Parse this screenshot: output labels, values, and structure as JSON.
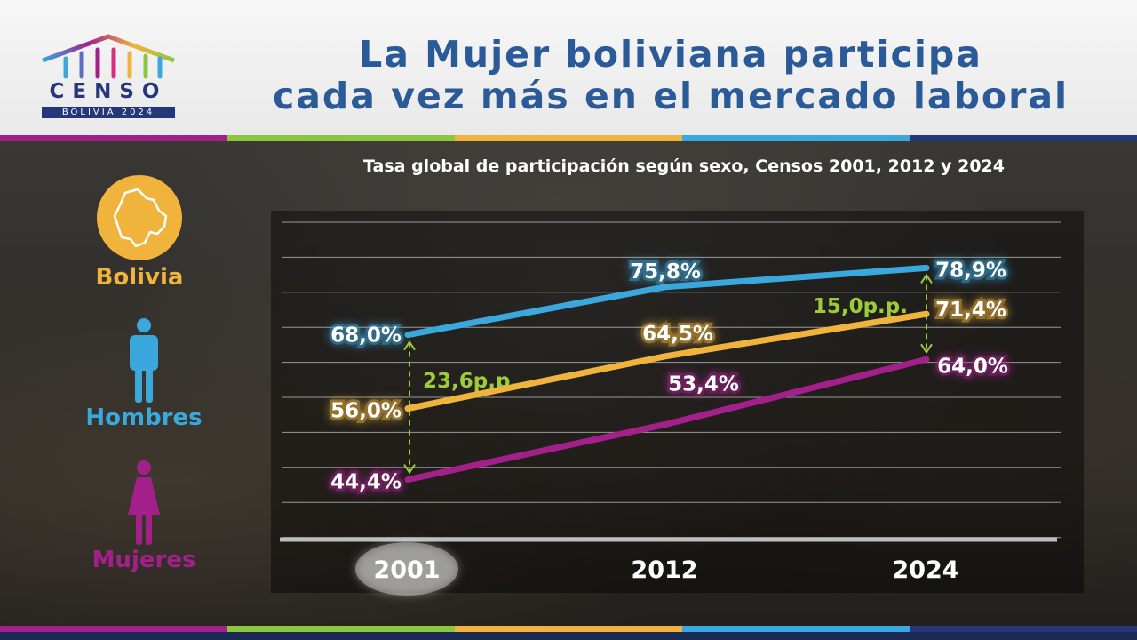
{
  "header": {
    "title_line1": "La Mujer boliviana participa",
    "title_line2": "cada vez más en el mercado laboral",
    "logo_word": "CENSO",
    "logo_sub": "BOLIVIA 2024"
  },
  "legend": {
    "bolivia": "Bolivia",
    "hombres": "Hombres",
    "mujeres": "Mujeres"
  },
  "colors": {
    "bolivia": "#f0b43c",
    "hombres": "#3aa7dd",
    "mujeres": "#a3208b",
    "gap": "#9ccb3b",
    "title": "#2a5a97",
    "stripe": [
      "#a3208b",
      "#8cc63e",
      "#f0b43c",
      "#3aa7dd",
      "#26367a"
    ]
  },
  "icons": [
    "bolivia-map-icon",
    "man-icon",
    "woman-icon"
  ],
  "chart_data": {
    "type": "line",
    "title": "Tasa global de participación según sexo, Censos 2001, 2012 y 2024",
    "categories": [
      "2001",
      "2012",
      "2024"
    ],
    "ylim": [
      40,
      82
    ],
    "grid": true,
    "series": [
      {
        "key": "hombres",
        "name": "Hombres",
        "values": [
          68.0,
          75.8,
          78.9
        ],
        "labels": [
          "68,0%",
          "75,8%",
          "78,9%"
        ]
      },
      {
        "key": "bolivia",
        "name": "Bolivia",
        "values": [
          56.0,
          64.5,
          71.4
        ],
        "labels": [
          "56,0%",
          "64,5%",
          "71,4%"
        ]
      },
      {
        "key": "mujeres",
        "name": "Mujeres",
        "values": [
          44.4,
          53.4,
          64.0
        ],
        "labels": [
          "44,4%",
          "53,4%",
          "64,0%"
        ]
      }
    ],
    "gaps": [
      {
        "category": "2001",
        "label": "23,6p.p.",
        "from": 44.4,
        "to": 68.0
      },
      {
        "category": "2024",
        "label": "15,0p.p.",
        "from": 64.0,
        "to": 78.9
      }
    ]
  }
}
